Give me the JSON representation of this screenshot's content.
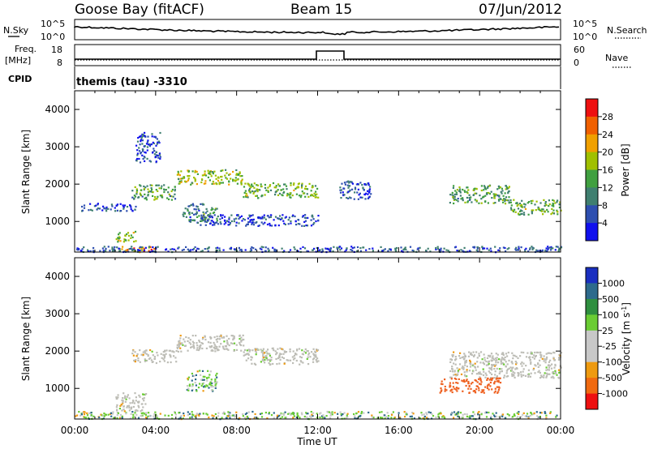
{
  "header": {
    "station": "Goose Bay (fitACF)",
    "beam": "Beam 15",
    "date": "07/Jun/2012"
  },
  "params_panel": {
    "nsky_label": "N.Sky",
    "nsky_ticks": [
      "10^5",
      "10^0"
    ],
    "nsearch_label": "N.Search",
    "nsearch_ticks": [
      "10^5",
      "10^0"
    ],
    "freq_label": "Freq.",
    "freq_unit": "[MHz]",
    "freq_ticks": [
      "18",
      "8"
    ],
    "nave_label": "Nave",
    "nave_ticks": [
      "60",
      "0"
    ],
    "cpid_label": "CPID",
    "cpid_value": "themis (tau) -3310"
  },
  "colors": {
    "power_scale": [
      "#1010ee",
      "#2e4fb0",
      "#3f7f70",
      "#40a040",
      "#a0c000",
      "#f0a000",
      "#f06000",
      "#ee1010"
    ],
    "velocity_scale": [
      "#1a2fc0",
      "#2d6a8c",
      "#2f8f3f",
      "#6acc33",
      "#c8c8c8",
      "#c8c8c8",
      "#ee9a10",
      "#f06a10",
      "#ee6020",
      "#ee1010"
    ],
    "ground_scatter": "#bdbdb6"
  },
  "chart_data": [
    {
      "type": "heatmap",
      "parameter": "Power",
      "ylabel": "Slant Range [km]",
      "ylim": [
        180,
        4500
      ],
      "y_ticks": [
        "1000",
        "2000",
        "3000",
        "4000"
      ],
      "xlim": [
        0,
        24
      ],
      "colorbar_label": "Power [dB]",
      "colorbar_ticks": [
        "4",
        "8",
        "12",
        "16",
        "20",
        "24",
        "28"
      ],
      "colorbar_range": [
        0,
        30
      ],
      "regions": [
        {
          "x": [
            0.2,
            3.0
          ],
          "y": [
            1300,
            1500
          ],
          "value": 6
        },
        {
          "x": [
            2.8,
            5.0
          ],
          "y": [
            1600,
            2000
          ],
          "value": 12
        },
        {
          "x": [
            5.0,
            8.3
          ],
          "y": [
            2000,
            2400
          ],
          "value": 16
        },
        {
          "x": [
            8.3,
            12.0
          ],
          "y": [
            1650,
            2050
          ],
          "value": 14
        },
        {
          "x": [
            3.0,
            4.2
          ],
          "y": [
            2600,
            3400
          ],
          "value": 5
        },
        {
          "x": [
            5.3,
            6.5
          ],
          "y": [
            1000,
            1500
          ],
          "value": 8
        },
        {
          "x": [
            6.3,
            7.0
          ],
          "y": [
            1000,
            1400
          ],
          "value": 12
        },
        {
          "x": [
            2.0,
            3.0
          ],
          "y": [
            450,
            750
          ],
          "value": 16
        },
        {
          "x": [
            2.3,
            4.0
          ],
          "y": [
            200,
            350
          ],
          "value": 22
        },
        {
          "x": [
            0.0,
            24.0
          ],
          "y": [
            200,
            350
          ],
          "value": 6
        },
        {
          "x": [
            13.0,
            14.6
          ],
          "y": [
            1600,
            2100
          ],
          "value": 6
        },
        {
          "x": [
            18.5,
            21.5
          ],
          "y": [
            1500,
            2000
          ],
          "value": 12
        },
        {
          "x": [
            21.5,
            24.0
          ],
          "y": [
            1200,
            1600
          ],
          "value": 14
        },
        {
          "x": [
            6.0,
            12.0
          ],
          "y": [
            900,
            1200
          ],
          "value": 5
        }
      ]
    },
    {
      "type": "heatmap",
      "parameter": "Velocity",
      "ylabel": "Slant Range [km]",
      "xlabel": "Time UT",
      "ylim": [
        180,
        4500
      ],
      "y_ticks": [
        "1000",
        "2000",
        "3000",
        "4000"
      ],
      "xlim": [
        0,
        24
      ],
      "x_ticks": [
        "00:00",
        "04:00",
        "08:00",
        "12:00",
        "16:00",
        "20:00",
        "00:00"
      ],
      "colorbar_label": "Velocity [m s",
      "colorbar_label_sup": "-1",
      "colorbar_label_end": "]",
      "colorbar_ticks": [
        "1000",
        "500",
        "100",
        "25",
        "-25",
        "-100",
        "-500",
        "-1000"
      ],
      "regions": [
        {
          "x": [
            2.8,
            5.0
          ],
          "y": [
            1700,
            2050
          ],
          "value": 0
        },
        {
          "x": [
            5.0,
            8.3
          ],
          "y": [
            2000,
            2450
          ],
          "value": 0
        },
        {
          "x": [
            8.3,
            12.0
          ],
          "y": [
            1650,
            2100
          ],
          "value": 0
        },
        {
          "x": [
            2.0,
            3.5
          ],
          "y": [
            400,
            900
          ],
          "value": 0
        },
        {
          "x": [
            0.0,
            24.0
          ],
          "y": [
            200,
            400
          ],
          "value": 50
        },
        {
          "x": [
            5.5,
            7.0
          ],
          "y": [
            950,
            1500
          ],
          "value": 60
        },
        {
          "x": [
            18.5,
            24.0
          ],
          "y": [
            1300,
            2000
          ],
          "value": 0
        },
        {
          "x": [
            18.0,
            21.0
          ],
          "y": [
            900,
            1300
          ],
          "value": -200
        }
      ]
    }
  ]
}
